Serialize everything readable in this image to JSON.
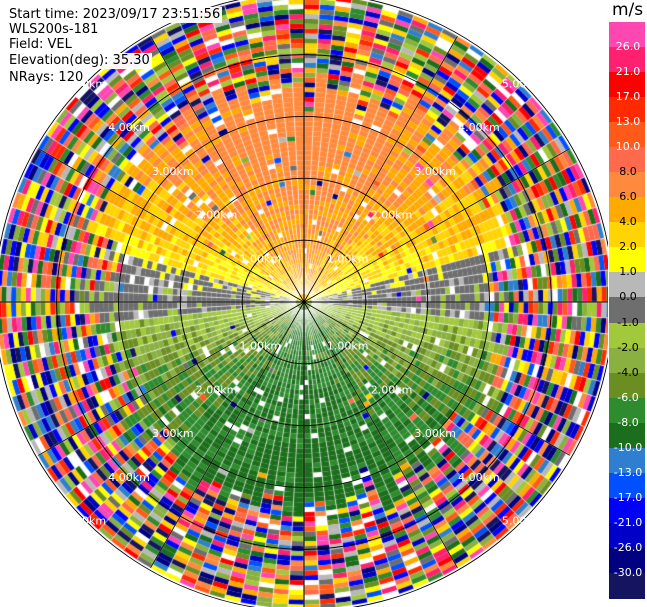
{
  "header": {
    "start_time": "Start time: 2023/09/17 23:51:56",
    "instrument": "WLS200s-181",
    "field": "Field: VEL",
    "elevation": "Elevation(deg): 35.30",
    "nrays": "NRays: 120"
  },
  "chart_data": {
    "type": "heatmap",
    "projection": "polar-ppi",
    "title": "",
    "field": "VEL",
    "units": "m/s",
    "elevation_deg": 35.3,
    "n_rays": 120,
    "range_rings_km": [
      1,
      2,
      3,
      4,
      5
    ],
    "range_labels": [
      "1.00km",
      "2.00km",
      "3.00km",
      "4.00km",
      "5.00km"
    ],
    "max_range_km": 6.6,
    "spokes_deg": [
      0,
      30,
      60,
      90,
      120,
      150,
      180,
      210,
      240,
      270,
      300,
      330
    ],
    "velocity_pattern": {
      "north_sector_approx_ms": [
        2.0,
        8.0
      ],
      "east_west_band_approx_ms": [
        -1.0,
        1.0
      ],
      "south_sector_approx_ms": [
        -8.0,
        -2.0
      ],
      "valid_range_km": [
        0.0,
        4.6
      ]
    },
    "colorbar": {
      "unit": "m/s",
      "tick_labels": [
        "26.0",
        "21.0",
        "17.0",
        "13.0",
        "10.0",
        "8.0",
        "6.0",
        "4.0",
        "2.0",
        "1.0",
        "0.0",
        "-1.0",
        "-2.0",
        "-4.0",
        "-6.0",
        "-8.0",
        "-10.0",
        "-13.0",
        "-17.0",
        "-21.0",
        "-26.0",
        "-30.0"
      ],
      "colors": [
        "#ff47b2",
        "#ff2070",
        "#ff0000",
        "#ff2a00",
        "#ff5a1a",
        "#ff6a4d",
        "#ff8a3d",
        "#ffaa00",
        "#ffd400",
        "#ffff00",
        "#b8b8b8",
        "#6e6e6e",
        "#a2c83c",
        "#8ab040",
        "#6b8e23",
        "#2e8b2e",
        "#1b6e1b",
        "#2e7fd0",
        "#0050ff",
        "#0000ff",
        "#0000c8",
        "#000080",
        "#141460"
      ]
    }
  }
}
